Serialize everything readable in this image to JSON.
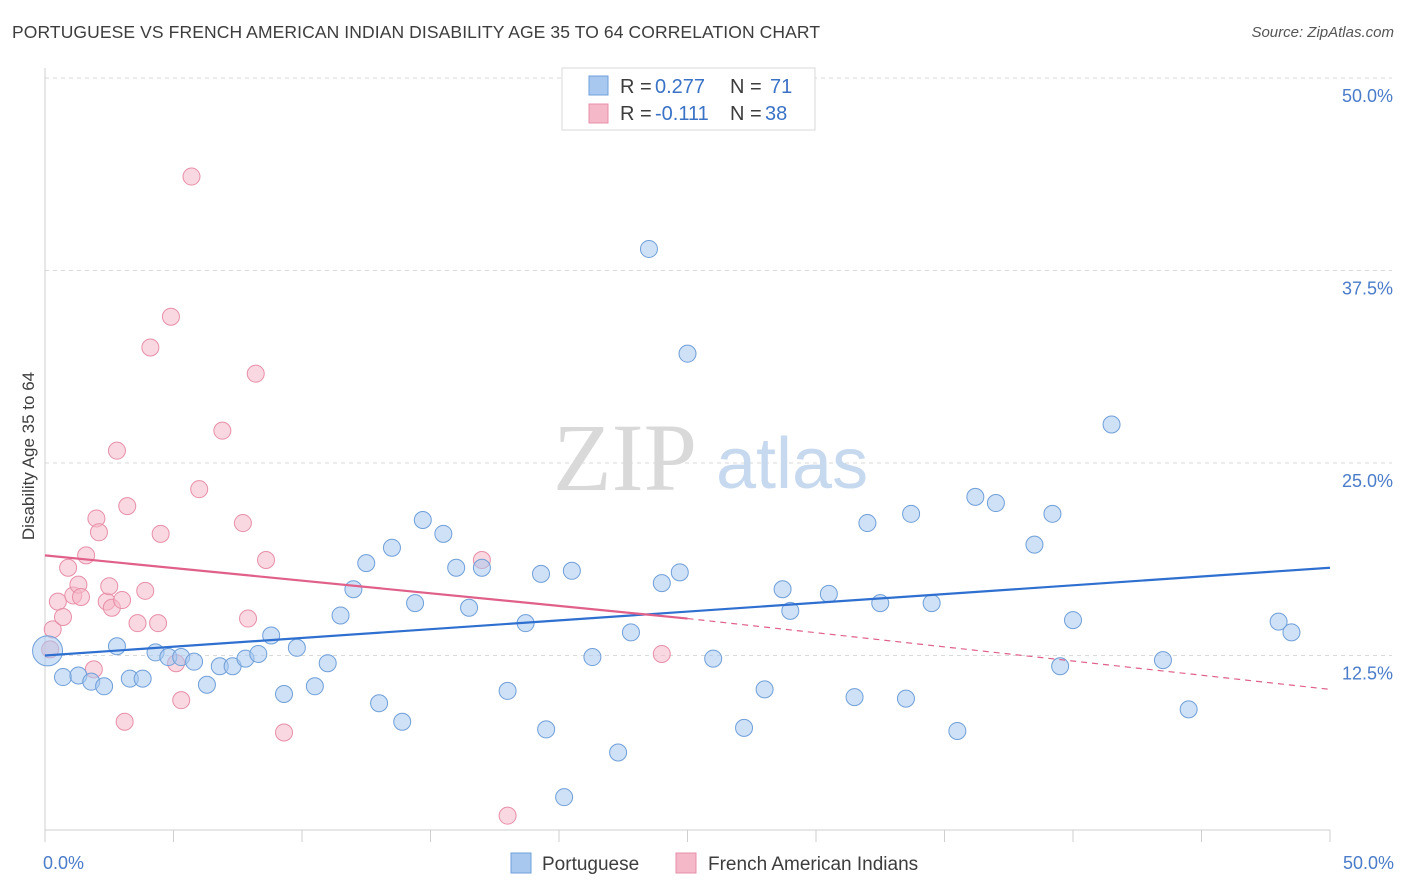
{
  "title": "PORTUGUESE VS FRENCH AMERICAN INDIAN DISABILITY AGE 35 TO 64 CORRELATION CHART",
  "source": "Source: ZipAtlas.com",
  "watermark": {
    "zip": "ZIP",
    "atlas": "atlas"
  },
  "legend": {
    "r_label": "R =",
    "n_label": "N =",
    "rows": [
      {
        "r": "0.277",
        "n": "71",
        "color": "#a8c8f0"
      },
      {
        "r": "-0.111",
        "n": "38",
        "color": "#f5b8c8"
      }
    ]
  },
  "chart_data": {
    "type": "scatter",
    "title": "PORTUGUESE VS FRENCH AMERICAN INDIAN DISABILITY AGE 35 TO 64 CORRELATION CHART",
    "xlabel": "",
    "ylabel": "Disability Age 35 to 64",
    "xlim": [
      0,
      50
    ],
    "ylim": [
      0,
      50
    ],
    "x_tick_labels": [
      "0.0%",
      "50.0%"
    ],
    "y_ticks": [
      12.5,
      25.0,
      37.5,
      50.0
    ],
    "y_tick_labels": [
      "12.5%",
      "25.0%",
      "37.5%",
      "50.0%"
    ],
    "grid": true,
    "legend_position": "top-center",
    "series": [
      {
        "name": "Portuguese",
        "color": "#a8c8f0",
        "stroke": "#6f9fd8",
        "trend_color": "#2e6fd0",
        "trend": {
          "x": [
            0,
            50
          ],
          "y": [
            12.5,
            18.2
          ]
        },
        "points": [
          [
            0.1,
            12.8
          ],
          [
            0.7,
            11.1
          ],
          [
            1.3,
            11.2
          ],
          [
            1.8,
            10.8
          ],
          [
            2.3,
            10.5
          ],
          [
            2.8,
            13.1
          ],
          [
            3.3,
            11.0
          ],
          [
            3.8,
            11.0
          ],
          [
            4.3,
            12.7
          ],
          [
            4.8,
            12.4
          ],
          [
            5.3,
            12.4
          ],
          [
            5.8,
            12.1
          ],
          [
            6.3,
            10.6
          ],
          [
            6.8,
            11.8
          ],
          [
            7.3,
            11.8
          ],
          [
            7.8,
            12.3
          ],
          [
            8.3,
            12.6
          ],
          [
            8.8,
            13.8
          ],
          [
            9.3,
            10.0
          ],
          [
            9.8,
            13.0
          ],
          [
            10.5,
            10.5
          ],
          [
            11.0,
            12.0
          ],
          [
            11.5,
            15.1
          ],
          [
            12.0,
            16.8
          ],
          [
            12.5,
            18.5
          ],
          [
            13.0,
            9.4
          ],
          [
            13.5,
            19.5
          ],
          [
            13.9,
            8.2
          ],
          [
            14.4,
            15.9
          ],
          [
            14.7,
            21.3
          ],
          [
            15.5,
            20.4
          ],
          [
            16.0,
            18.2
          ],
          [
            16.5,
            15.6
          ],
          [
            17.0,
            18.2
          ],
          [
            18.0,
            10.2
          ],
          [
            18.7,
            14.6
          ],
          [
            19.5,
            7.7
          ],
          [
            19.3,
            17.8
          ],
          [
            20.2,
            3.3
          ],
          [
            20.5,
            18.0
          ],
          [
            21.3,
            12.4
          ],
          [
            22.3,
            6.2
          ],
          [
            22.8,
            14.0
          ],
          [
            23.5,
            38.9
          ],
          [
            24.0,
            17.2
          ],
          [
            24.7,
            17.9
          ],
          [
            25.0,
            32.1
          ],
          [
            26.0,
            12.3
          ],
          [
            27.2,
            7.8
          ],
          [
            28.0,
            10.3
          ],
          [
            28.7,
            16.8
          ],
          [
            29.0,
            15.4
          ],
          [
            30.5,
            16.5
          ],
          [
            31.5,
            9.8
          ],
          [
            32.0,
            21.1
          ],
          [
            32.5,
            15.9
          ],
          [
            33.5,
            9.7
          ],
          [
            33.7,
            21.7
          ],
          [
            34.5,
            15.9
          ],
          [
            35.5,
            7.6
          ],
          [
            36.2,
            22.8
          ],
          [
            37.0,
            22.4
          ],
          [
            38.5,
            19.7
          ],
          [
            39.2,
            21.7
          ],
          [
            39.5,
            11.8
          ],
          [
            40.0,
            14.8
          ],
          [
            41.5,
            27.5
          ],
          [
            44.5,
            9.0
          ],
          [
            48.0,
            14.7
          ],
          [
            48.5,
            14.0
          ],
          [
            43.5,
            12.2
          ]
        ]
      },
      {
        "name": "French American Indians",
        "color": "#f5b8c8",
        "stroke": "#e78fa8",
        "trend_color": "#e0608a",
        "trend": {
          "x": [
            0,
            25
          ],
          "y": [
            19.0,
            14.9
          ]
        },
        "trend_extension": {
          "x": [
            25,
            50
          ],
          "y": [
            14.9,
            10.3
          ]
        },
        "points": [
          [
            0.2,
            12.9
          ],
          [
            0.3,
            14.2
          ],
          [
            0.5,
            16.0
          ],
          [
            0.7,
            15.0
          ],
          [
            0.9,
            18.2
          ],
          [
            1.1,
            16.4
          ],
          [
            1.3,
            17.1
          ],
          [
            1.4,
            16.3
          ],
          [
            1.6,
            19.0
          ],
          [
            1.9,
            11.6
          ],
          [
            2.0,
            21.4
          ],
          [
            2.1,
            20.5
          ],
          [
            2.4,
            16.0
          ],
          [
            2.5,
            17.0
          ],
          [
            2.6,
            15.6
          ],
          [
            2.8,
            25.8
          ],
          [
            3.0,
            16.1
          ],
          [
            3.1,
            8.2
          ],
          [
            3.2,
            22.2
          ],
          [
            3.6,
            14.6
          ],
          [
            3.9,
            16.7
          ],
          [
            4.1,
            32.5
          ],
          [
            4.4,
            14.6
          ],
          [
            4.5,
            20.4
          ],
          [
            4.9,
            34.5
          ],
          [
            5.1,
            12.0
          ],
          [
            5.3,
            9.6
          ],
          [
            5.7,
            43.6
          ],
          [
            6.0,
            23.3
          ],
          [
            6.9,
            27.1
          ],
          [
            7.7,
            21.1
          ],
          [
            7.9,
            14.9
          ],
          [
            8.2,
            30.8
          ],
          [
            8.6,
            18.7
          ],
          [
            9.3,
            7.5
          ],
          [
            17.0,
            18.7
          ],
          [
            24.0,
            12.6
          ],
          [
            18.0,
            2.1
          ]
        ]
      }
    ]
  }
}
